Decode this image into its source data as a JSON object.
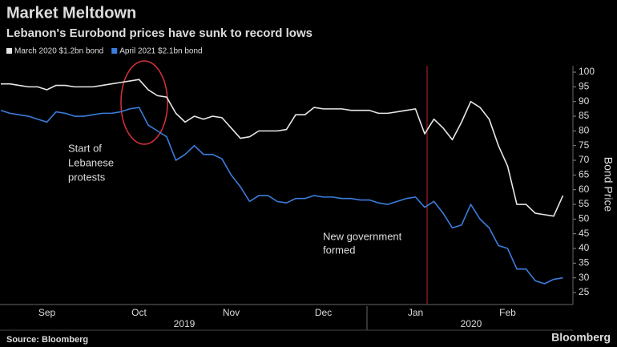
{
  "chart_data": {
    "type": "line",
    "title": "Market Meltdown",
    "subtitle": "Lebanon's Eurobond prices have sunk to record lows",
    "y_label": "Bond Price",
    "source": "Source: Bloomberg",
    "brand": "Bloomberg",
    "year_labels": [
      "2019",
      "2020"
    ],
    "annotations": [
      {
        "lines": [
          "Start of",
          "Lebanese",
          "protests"
        ]
      },
      {
        "lines": [
          "New government",
          "formed"
        ]
      }
    ],
    "categories": [
      null,
      null,
      null,
      null,
      null,
      "Sep",
      null,
      null,
      null,
      null,
      null,
      null,
      null,
      null,
      null,
      "Oct",
      null,
      null,
      null,
      null,
      null,
      null,
      null,
      null,
      null,
      "Nov",
      null,
      null,
      null,
      null,
      null,
      null,
      null,
      null,
      null,
      "Dec",
      null,
      null,
      null,
      null,
      null,
      null,
      null,
      null,
      null,
      "Jan",
      null,
      null,
      null,
      null,
      null,
      null,
      null,
      null,
      null,
      "Feb",
      null,
      null,
      null,
      null,
      null,
      null
    ],
    "series": [
      {
        "name": "March 2020 $1.2bn bond",
        "color": "#e6e6e6",
        "values": [
          96,
          96,
          95.5,
          95,
          95,
          94,
          95.5,
          95.5,
          95,
          95,
          95,
          95.5,
          96,
          96.5,
          97,
          97.5,
          94,
          92,
          91.5,
          86,
          83,
          85,
          84,
          85,
          84.5,
          81,
          77.5,
          78,
          80,
          80,
          80,
          80.5,
          85.5,
          85.5,
          88,
          87.5,
          87.5,
          87.5,
          87,
          87,
          87,
          86,
          86,
          86.5,
          87,
          87.5,
          79,
          84,
          81,
          77,
          83,
          90,
          88,
          84,
          75,
          68,
          55,
          55,
          52,
          51.5,
          51,
          58
        ]
      },
      {
        "name": "April 2021 $2.1bn bond",
        "color": "#3b7ddd",
        "values": [
          87,
          86,
          85.5,
          85,
          84,
          83,
          86.5,
          86,
          85,
          85,
          85.5,
          86,
          86,
          86.5,
          87.5,
          88,
          82,
          80,
          78,
          70,
          72,
          75,
          72,
          72,
          70.5,
          65,
          61,
          56,
          58,
          58,
          56,
          55.5,
          57,
          57,
          58,
          57.5,
          57.5,
          57,
          57,
          56.5,
          56.5,
          55.5,
          55,
          56,
          57,
          57.5,
          54,
          56,
          52,
          47,
          48,
          55,
          50,
          47,
          41,
          40,
          33,
          33,
          29,
          28,
          29.5,
          30
        ]
      }
    ],
    "ylim": [
      21,
      102
    ],
    "yticks": [
      25,
      30,
      35,
      40,
      45,
      50,
      55,
      60,
      65,
      70,
      75,
      80,
      85,
      90,
      95,
      100
    ]
  }
}
